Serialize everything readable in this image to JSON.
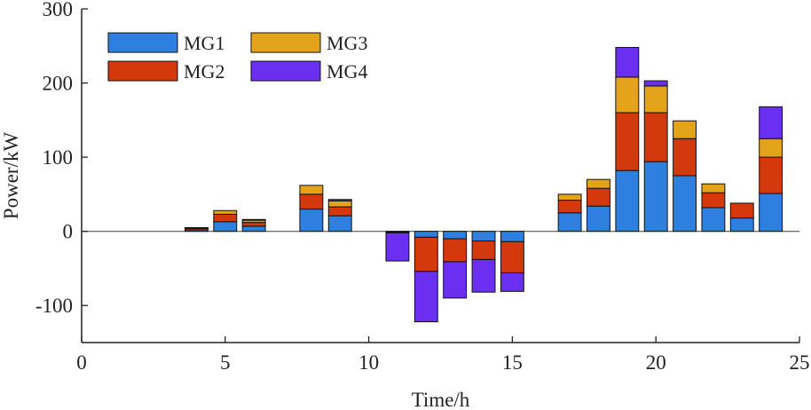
{
  "chart_data": {
    "type": "bar",
    "stacked": true,
    "title": "",
    "xlabel": "Time/h",
    "ylabel": "Power/kW",
    "xlim": [
      0,
      25
    ],
    "ylim": [
      -150,
      300
    ],
    "xticks": [
      0,
      5,
      10,
      15,
      20,
      25
    ],
    "yticks": [
      -100,
      0,
      100,
      200,
      300
    ],
    "legend": {
      "placement": "top-left",
      "columns": 2,
      "order": [
        "MG1",
        "MG3",
        "MG2",
        "MG4"
      ]
    },
    "categories": [
      4,
      5,
      6,
      8,
      9,
      11,
      12,
      13,
      14,
      15,
      17,
      18,
      19,
      20,
      21,
      22,
      23,
      24
    ],
    "series": [
      {
        "name": "MG1",
        "color": "#2f7fe0",
        "values": [
          2,
          13,
          7,
          30,
          21,
          -1,
          -8,
          -10,
          -13,
          -14,
          25,
          34,
          82,
          94,
          75,
          32,
          18,
          51
        ]
      },
      {
        "name": "MG2",
        "color": "#d4380d",
        "values": [
          2,
          10,
          5,
          20,
          12,
          -1,
          -46,
          -31,
          -25,
          -42,
          17,
          24,
          78,
          66,
          50,
          20,
          20,
          49
        ]
      },
      {
        "name": "MG3",
        "color": "#e3a41c",
        "values": [
          0,
          5,
          3,
          12,
          8,
          0,
          0,
          0,
          0,
          0,
          8,
          12,
          48,
          36,
          24,
          12,
          0,
          25
        ]
      },
      {
        "name": "MG4",
        "color": "#6a2ff0",
        "values": [
          1,
          0,
          1,
          0,
          2,
          -38,
          -68,
          -49,
          -44,
          -25,
          0,
          0,
          40,
          7,
          0,
          0,
          0,
          43
        ]
      }
    ]
  }
}
